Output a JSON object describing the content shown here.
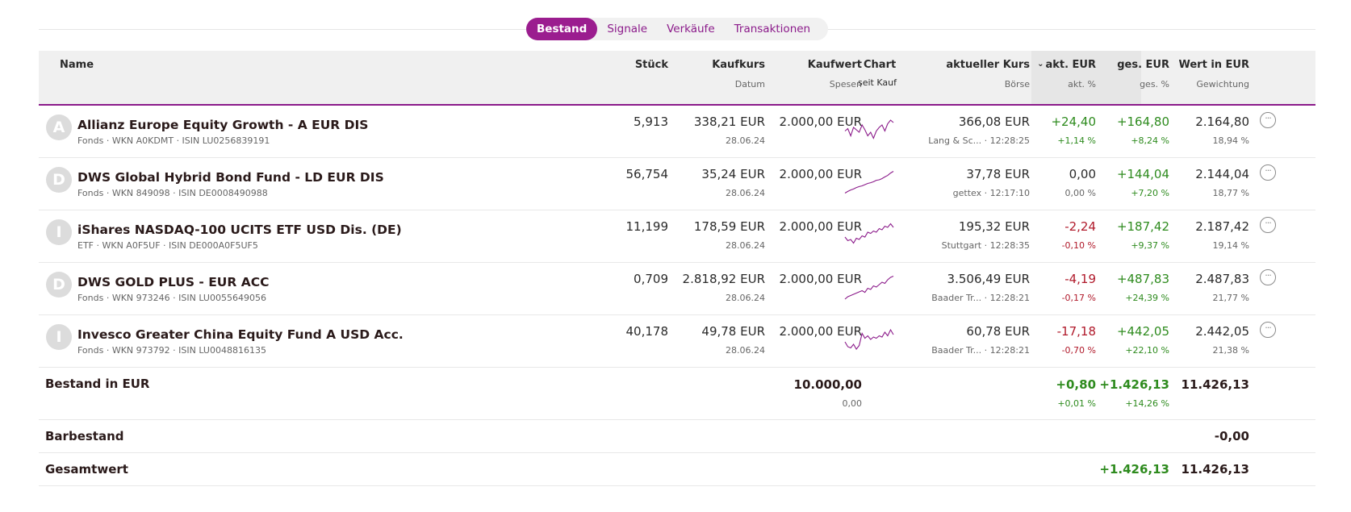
{
  "tabs": [
    {
      "label": "Bestand",
      "active": true
    },
    {
      "label": "Signale",
      "active": false
    },
    {
      "label": "Verkäufe",
      "active": false
    },
    {
      "label": "Transaktionen",
      "active": false
    }
  ],
  "header": {
    "name": "Name",
    "stueck": "Stück",
    "kaufkurs": "Kaufkurs",
    "datum": "Datum",
    "kaufwert": "Kaufwert",
    "spesen": "Spesen",
    "chart": "Chart",
    "seit_kauf": "seit Kauf",
    "aktueller_kurs": "aktueller Kurs",
    "boerse": "Börse",
    "akt_eur": "akt. EUR",
    "akt_pct": "akt. %",
    "ges_eur": "ges. EUR",
    "ges_pct": "ges. %",
    "wert": "Wert in EUR",
    "gewichtung": "Gewichtung"
  },
  "positions": [
    {
      "avatar": "A",
      "name": "Allianz Europe Equity Growth - A EUR DIS",
      "sub": "Fonds · WKN A0KDMT · ISIN LU0256839191",
      "stueck": "5,913",
      "kaufkurs": "338,21 EUR",
      "datum": "28.06.24",
      "kaufwert": "2.000,00 EUR",
      "kurs": "366,08 EUR",
      "boerse": "Lang & Sc... · 12:28:25",
      "akt_eur": "+24,40",
      "akt_pct": "+1,14 %",
      "akt_sign": "pos",
      "ges_eur": "+164,80",
      "ges_pct": "+8,24 %",
      "wert": "2.164,80",
      "gewichtung": "18,94 %",
      "spark": [
        0.55,
        0.45,
        0.75,
        0.4,
        0.5,
        0.6,
        0.3,
        0.5,
        0.75,
        0.6,
        0.85,
        0.55,
        0.4,
        0.3,
        0.55,
        0.25,
        0.1,
        0.2
      ]
    },
    {
      "avatar": "D",
      "name": "DWS Global Hybrid Bond Fund - LD EUR DIS",
      "sub": "Fonds · WKN 849098 · ISIN DE0008490988",
      "stueck": "56,754",
      "kaufkurs": "35,24 EUR",
      "datum": "28.06.24",
      "kaufwert": "2.000,00 EUR",
      "kurs": "37,78 EUR",
      "boerse": "gettex · 12:17:10",
      "akt_eur": "0,00",
      "akt_pct": "0,00 %",
      "akt_sign": "zero",
      "ges_eur": "+144,04",
      "ges_pct": "+7,20 %",
      "wert": "2.144,04",
      "gewichtung": "18,77 %",
      "spark": [
        0.95,
        0.88,
        0.82,
        0.78,
        0.72,
        0.68,
        0.65,
        0.6,
        0.55,
        0.52,
        0.48,
        0.42,
        0.4,
        0.35,
        0.28,
        0.22,
        0.12,
        0.05
      ]
    },
    {
      "avatar": "I",
      "name": "iShares NASDAQ-100 UCITS ETF USD Dis. (DE)",
      "sub": "ETF · WKN A0F5UF · ISIN DE000A0F5UF5",
      "stueck": "11,199",
      "kaufkurs": "178,59 EUR",
      "datum": "28.06.24",
      "kaufwert": "2.000,00 EUR",
      "kurs": "195,32 EUR",
      "boerse": "Stuttgart · 12:28:35",
      "akt_eur": "-2,24",
      "akt_pct": "-0,10 %",
      "akt_sign": "neg",
      "ges_eur": "+187,42",
      "ges_pct": "+9,37 %",
      "wert": "2.187,42",
      "gewichtung": "19,14 %",
      "spark": [
        0.6,
        0.75,
        0.7,
        0.85,
        0.65,
        0.7,
        0.55,
        0.6,
        0.4,
        0.45,
        0.35,
        0.4,
        0.25,
        0.3,
        0.15,
        0.2,
        0.05,
        0.2
      ]
    },
    {
      "avatar": "D",
      "name": "DWS GOLD PLUS - EUR ACC",
      "sub": "Fonds · WKN 973246 · ISIN LU0055649056",
      "stueck": "0,709",
      "kaufkurs": "2.818,92 EUR",
      "datum": "28.06.24",
      "kaufwert": "2.000,00 EUR",
      "kurs": "3.506,49 EUR",
      "boerse": "Baader Tr... · 12:28:21",
      "akt_eur": "-4,19",
      "akt_pct": "-0,17 %",
      "akt_sign": "neg",
      "ges_eur": "+487,83",
      "ges_pct": "+24,39 %",
      "wert": "2.487,83",
      "gewichtung": "21,77 %",
      "spark": [
        1.0,
        0.9,
        0.85,
        0.8,
        0.75,
        0.7,
        0.65,
        0.72,
        0.55,
        0.6,
        0.45,
        0.5,
        0.4,
        0.3,
        0.35,
        0.2,
        0.1,
        0.05
      ]
    },
    {
      "avatar": "I",
      "name": "Invesco Greater China Equity Fund A USD Acc.",
      "sub": "Fonds · WKN 973792 · ISIN LU0048816135",
      "stueck": "40,178",
      "kaufkurs": "49,78 EUR",
      "datum": "28.06.24",
      "kaufwert": "2.000,00 EUR",
      "kurs": "60,78 EUR",
      "boerse": "Baader Tr... · 12:28:21",
      "akt_eur": "-17,18",
      "akt_pct": "-0,70 %",
      "akt_sign": "neg",
      "ges_eur": "+442,05",
      "ges_pct": "+22,10 %",
      "wert": "2.442,05",
      "gewichtung": "21,38 %",
      "spark": [
        0.6,
        0.8,
        0.85,
        0.7,
        0.9,
        0.75,
        0.25,
        0.45,
        0.35,
        0.5,
        0.4,
        0.45,
        0.35,
        0.4,
        0.2,
        0.35,
        0.1,
        0.3
      ]
    }
  ],
  "bestand": {
    "label": "Bestand in EUR",
    "kaufwert": "10.000,00",
    "spesen": "0,00",
    "akt_eur": "+0,80",
    "akt_pct": "+0,01 %",
    "ges_eur": "+1.426,13",
    "ges_pct": "+14,26 %",
    "wert": "11.426,13"
  },
  "barbestand": {
    "label": "Barbestand",
    "wert": "-0,00"
  },
  "gesamtwert": {
    "label": "Gesamtwert",
    "ges_eur": "+1.426,13",
    "wert": "11.426,13"
  },
  "colors": {
    "accent": "#9b1d8f",
    "positive": "#2e8b1e",
    "negative": "#b0192a",
    "spark": "#8b1a8a"
  }
}
